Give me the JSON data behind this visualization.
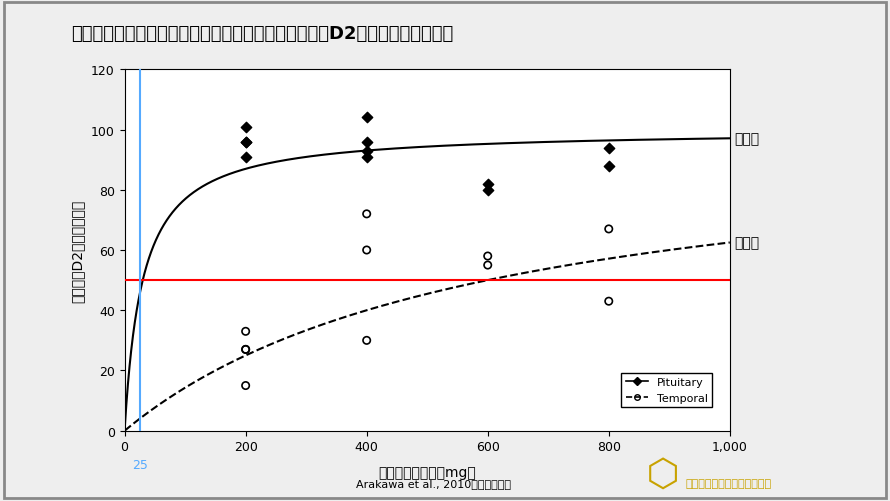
{
  "title": "スルピリド（ドグマチール）の用量と下垂体ドパミンD2受容体占有率の関係",
  "xlabel": "スルピリド用量（mg）",
  "ylabel": "ドパミンD2受容体占有率",
  "bg_color": "#eeeeee",
  "plot_bg_color": "#ffffff",
  "xlim": [
    0,
    1000
  ],
  "ylim": [
    0,
    120
  ],
  "yticks": [
    0,
    20,
    40,
    60,
    80,
    100,
    120
  ],
  "xticks": [
    0,
    200,
    400,
    600,
    800,
    1000
  ],
  "xtick_labels": [
    "0",
    "200",
    "400",
    "600",
    "800",
    "1,000"
  ],
  "x25_label": "25",
  "horizontal_line_y": 50,
  "horizontal_line_color": "#ff0000",
  "vertical_line_x": 25,
  "vertical_line_color": "#55aaff",
  "pituitary_scatter": [
    [
      200,
      91
    ],
    [
      200,
      96
    ],
    [
      200,
      101
    ],
    [
      200,
      96
    ],
    [
      400,
      93
    ],
    [
      400,
      96
    ],
    [
      400,
      104
    ],
    [
      400,
      91
    ],
    [
      600,
      80
    ],
    [
      600,
      82
    ],
    [
      800,
      88
    ],
    [
      800,
      94
    ]
  ],
  "temporal_scatter": [
    [
      200,
      15
    ],
    [
      200,
      27
    ],
    [
      200,
      33
    ],
    [
      200,
      27
    ],
    [
      400,
      30
    ],
    [
      400,
      60
    ],
    [
      400,
      72
    ],
    [
      600,
      55
    ],
    [
      600,
      58
    ],
    [
      800,
      43
    ],
    [
      800,
      67
    ]
  ],
  "pituitary_curve_Emax": 100,
  "pituitary_curve_EC50": 30,
  "temporal_curve_Emax": 100,
  "temporal_curve_EC50": 600,
  "label_pituitary": "下垂体",
  "label_temporal": "側頭葉",
  "legend_pituitary": "Pituitary",
  "legend_temporal": "Temporal",
  "citation": "Arakawa et al., 2010より引用作成",
  "clinic_name": "高津心音メンタルクリニック",
  "title_fontsize": 13,
  "axis_label_fontsize": 10,
  "tick_fontsize": 9,
  "annotation_fontsize": 10,
  "legend_fontsize": 8
}
